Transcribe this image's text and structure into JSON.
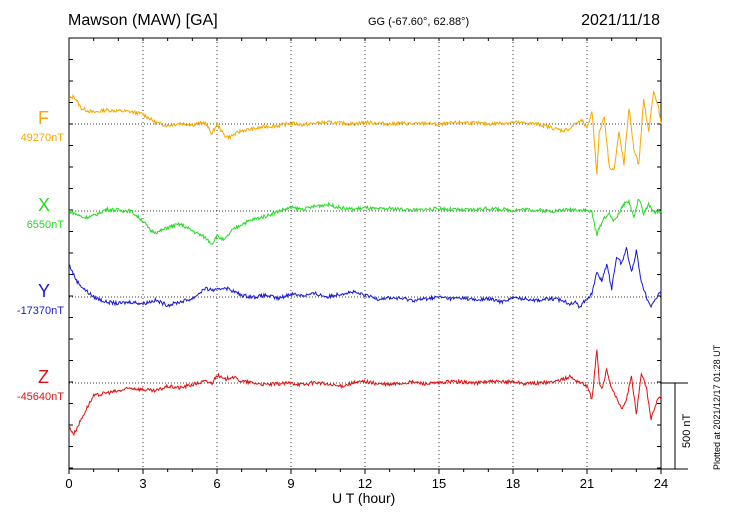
{
  "header": {
    "station": "Mawson (MAW)  [GA]",
    "coords": "GG (-67.60°,  62.88°)",
    "date": "2021/11/18"
  },
  "footer": {
    "plotted": "Plotted at 2021/12/17 01:28 UT",
    "scale_label": "500 nT"
  },
  "chart_data": {
    "type": "line",
    "xlabel": "U T (hour)",
    "xlim": [
      0,
      24
    ],
    "xticks": [
      "0",
      "3",
      "6",
      "9",
      "12",
      "15",
      "18",
      "21",
      "24"
    ],
    "grid": true,
    "scale_bar_nT": 500,
    "series": [
      {
        "name": "F",
        "baseline_label": "49270nT",
        "color": "#f5a800",
        "x": [
          0,
          0.2,
          0.5,
          1,
          1.5,
          2,
          2.5,
          3,
          3.5,
          4,
          4.5,
          5,
          5.5,
          5.8,
          6,
          6.3,
          6.5,
          7,
          7.5,
          8,
          8.5,
          9,
          9.5,
          10,
          10.5,
          11,
          11.5,
          12,
          12.5,
          13,
          13.5,
          14,
          14.5,
          15,
          15.5,
          16,
          16.5,
          17,
          17.5,
          18,
          18.5,
          19,
          19.5,
          20,
          20.3,
          20.5,
          20.8,
          21,
          21.2,
          21.4,
          21.5,
          21.7,
          21.9,
          22.1,
          22.3,
          22.5,
          22.7,
          22.9,
          23.1,
          23.3,
          23.5,
          23.7,
          23.9,
          24
        ],
        "y": [
          150,
          170,
          95,
          70,
          85,
          80,
          75,
          60,
          10,
          -10,
          5,
          -5,
          10,
          -60,
          0,
          -70,
          -80,
          -40,
          -30,
          -15,
          -10,
          5,
          -5,
          5,
          10,
          5,
          0,
          10,
          5,
          0,
          5,
          0,
          5,
          -5,
          5,
          10,
          5,
          0,
          5,
          10,
          5,
          0,
          -20,
          -40,
          -30,
          0,
          20,
          -30,
          80,
          -300,
          -50,
          50,
          -260,
          -280,
          -50,
          -250,
          100,
          -150,
          -250,
          150,
          -50,
          200,
          100,
          0
        ]
      },
      {
        "name": "X",
        "baseline_label": "6550nT",
        "color": "#22dd22",
        "x": [
          0,
          0.3,
          0.6,
          1,
          1.5,
          2,
          2.5,
          3,
          3.3,
          3.6,
          4,
          4.5,
          5,
          5.5,
          5.8,
          6,
          6.3,
          6.6,
          7,
          7.5,
          8,
          8.5,
          9,
          9.5,
          10,
          10.5,
          11,
          11.5,
          12,
          12.5,
          13,
          13.5,
          14,
          14.5,
          15,
          15.5,
          16,
          16.5,
          17,
          17.5,
          18,
          18.5,
          19,
          19.5,
          20,
          20.5,
          21,
          21.2,
          21.4,
          21.5,
          21.7,
          21.9,
          22.1,
          22.3,
          22.5,
          22.7,
          22.9,
          23.1,
          23.3,
          23.5,
          23.7,
          24
        ],
        "y": [
          0,
          -20,
          -40,
          -30,
          10,
          5,
          0,
          -60,
          -120,
          -130,
          -100,
          -80,
          -120,
          -160,
          -200,
          -150,
          -180,
          -120,
          -80,
          -50,
          -30,
          0,
          20,
          10,
          30,
          40,
          20,
          10,
          20,
          10,
          15,
          10,
          5,
          10,
          15,
          10,
          5,
          10,
          15,
          10,
          5,
          10,
          5,
          0,
          5,
          10,
          5,
          -10,
          -150,
          -100,
          -40,
          -20,
          -60,
          -10,
          40,
          60,
          -40,
          80,
          -20,
          40,
          -10,
          0
        ]
      },
      {
        "name": "Y",
        "baseline_label": "-17370nT",
        "color": "#1818d8",
        "x": [
          0,
          0.3,
          0.6,
          1,
          1.5,
          2,
          2.5,
          3,
          3.5,
          4,
          4.5,
          5,
          5.5,
          6,
          6.3,
          6.6,
          7,
          7.5,
          8,
          8.5,
          9,
          9.5,
          10,
          10.5,
          11,
          11.5,
          12,
          12.5,
          13,
          13.5,
          14,
          14.5,
          15,
          15.5,
          16,
          16.5,
          17,
          17.5,
          18,
          18.5,
          19,
          19.5,
          20,
          20.3,
          20.5,
          20.7,
          21,
          21.2,
          21.4,
          21.6,
          21.8,
          22,
          22.2,
          22.4,
          22.6,
          22.8,
          23,
          23.2,
          23.4,
          23.6,
          23.8,
          24
        ],
        "y": [
          200,
          100,
          50,
          0,
          -30,
          -40,
          -30,
          -40,
          -20,
          -50,
          -30,
          -10,
          50,
          40,
          60,
          40,
          10,
          0,
          10,
          -10,
          20,
          10,
          20,
          0,
          20,
          30,
          10,
          -10,
          -5,
          -10,
          -20,
          -10,
          0,
          -10,
          -5,
          -20,
          -10,
          -30,
          -5,
          -10,
          -20,
          -10,
          -20,
          -40,
          -30,
          -60,
          -10,
          20,
          150,
          100,
          200,
          50,
          250,
          200,
          300,
          150,
          280,
          100,
          0,
          -50,
          -10,
          40
        ]
      },
      {
        "name": "Z",
        "baseline_label": "-45640nT",
        "color": "#e01010",
        "x": [
          0,
          0.2,
          0.5,
          0.8,
          1,
          1.5,
          2,
          2.5,
          3,
          3.5,
          4,
          4.5,
          5,
          5.5,
          5.8,
          6,
          6.3,
          6.6,
          7,
          7.5,
          8,
          8.5,
          9,
          9.5,
          10,
          10.5,
          11,
          11.5,
          12,
          12.5,
          13,
          13.5,
          14,
          14.5,
          15,
          15.5,
          16,
          16.5,
          17,
          17.5,
          18,
          18.5,
          19,
          19.5,
          20,
          20.3,
          20.5,
          20.8,
          21,
          21.2,
          21.4,
          21.5,
          21.6,
          21.8,
          22,
          22.2,
          22.4,
          22.6,
          22.8,
          23,
          23.2,
          23.4,
          23.6,
          23.8,
          24
        ],
        "y": [
          -270,
          -310,
          -220,
          -130,
          -80,
          -60,
          -50,
          -30,
          -40,
          -50,
          -20,
          -30,
          -10,
          10,
          0,
          50,
          20,
          40,
          10,
          0,
          -10,
          -5,
          0,
          -10,
          5,
          -10,
          -20,
          0,
          10,
          -5,
          -10,
          0,
          5,
          -5,
          0,
          10,
          5,
          0,
          10,
          5,
          10,
          -5,
          0,
          5,
          20,
          40,
          20,
          0,
          -20,
          -100,
          200,
          0,
          -40,
          80,
          -30,
          -90,
          -160,
          -100,
          40,
          -190,
          60,
          -20,
          -220,
          -120,
          -80
        ]
      }
    ]
  }
}
